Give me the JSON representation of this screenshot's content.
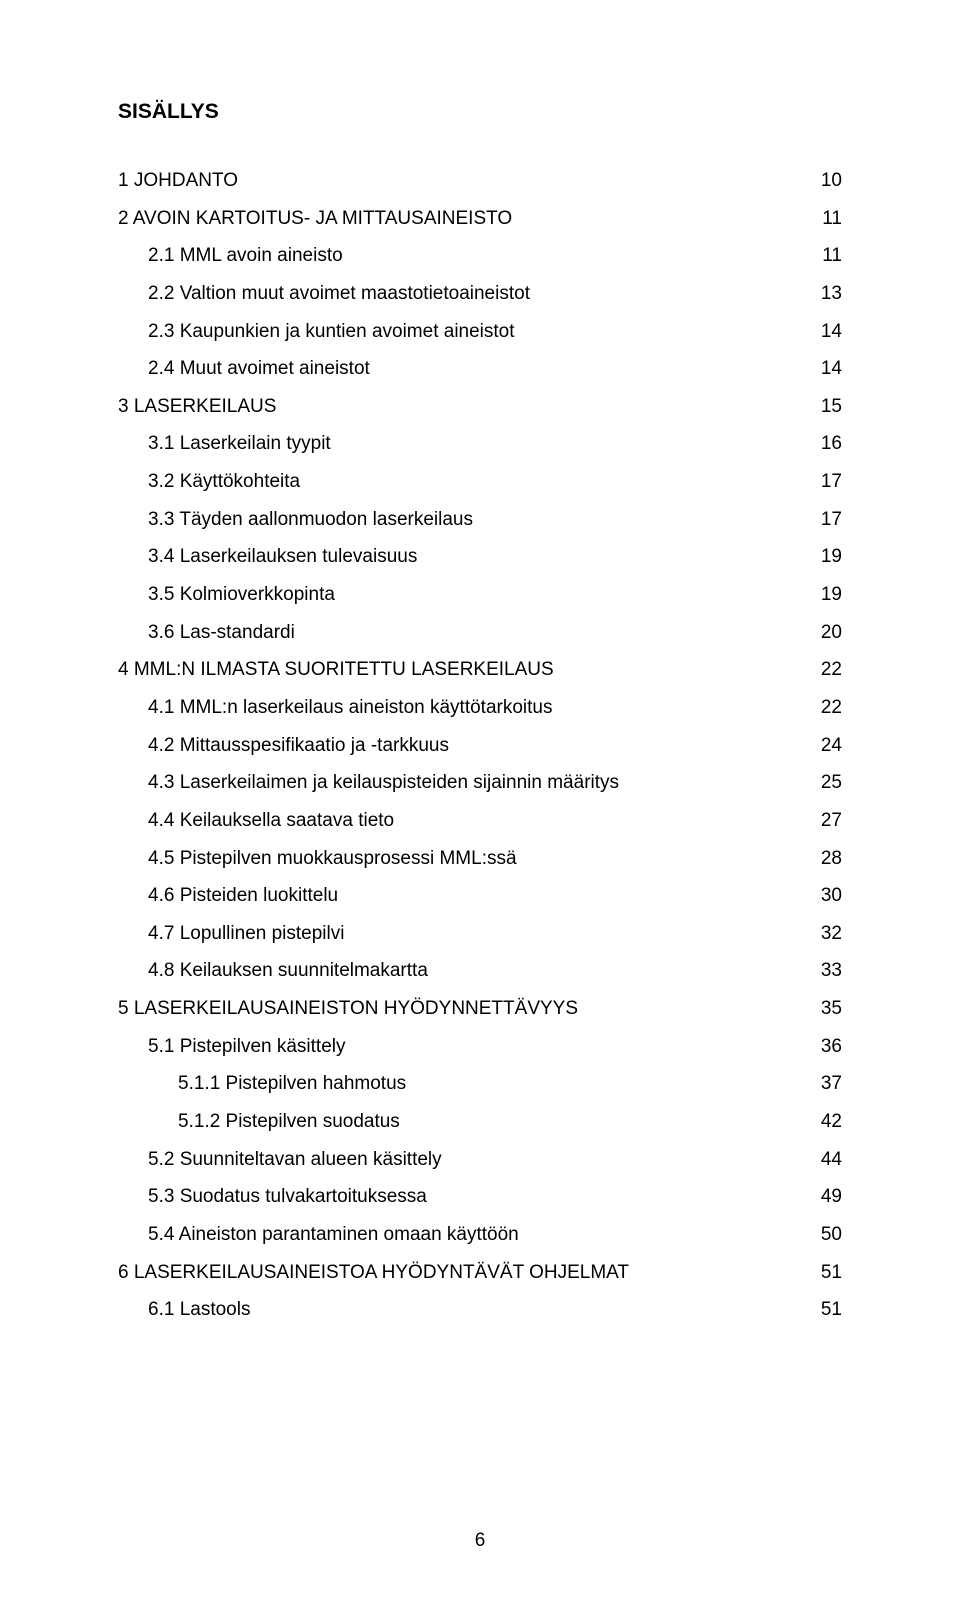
{
  "heading": "SISÄLLYS",
  "page_number": "6",
  "entries": [
    {
      "level": 0,
      "text": "1 JOHDANTO",
      "page": "10",
      "top_gap": true
    },
    {
      "level": 0,
      "text": "2 AVOIN KARTOITUS- JA MITTAUSAINEISTO",
      "page": "11"
    },
    {
      "level": 1,
      "text": "2.1 MML avoin aineisto",
      "page": "11"
    },
    {
      "level": 1,
      "text": "2.2 Valtion muut avoimet maastotietoaineistot",
      "page": "13"
    },
    {
      "level": 1,
      "text": "2.3 Kaupunkien ja kuntien avoimet aineistot",
      "page": "14"
    },
    {
      "level": 1,
      "text": "2.4 Muut avoimet aineistot",
      "page": "14"
    },
    {
      "level": 0,
      "text": "3 LASERKEILAUS",
      "page": "15"
    },
    {
      "level": 1,
      "text": "3.1 Laserkeilain tyypit",
      "page": "16"
    },
    {
      "level": 1,
      "text": "3.2 Käyttökohteita",
      "page": "17"
    },
    {
      "level": 1,
      "text": "3.3 Täyden aallonmuodon laserkeilaus",
      "page": "17"
    },
    {
      "level": 1,
      "text": "3.4 Laserkeilauksen tulevaisuus",
      "page": "19"
    },
    {
      "level": 1,
      "text": "3.5 Kolmioverkkopinta",
      "page": "19"
    },
    {
      "level": 1,
      "text": "3.6 Las-standardi",
      "page": "20"
    },
    {
      "level": 0,
      "text": "4 MML:N ILMASTA SUORITETTU LASERKEILAUS",
      "page": "22"
    },
    {
      "level": 1,
      "text": "4.1 MML:n laserkeilaus aineiston käyttötarkoitus",
      "page": "22"
    },
    {
      "level": 1,
      "text": "4.2 Mittausspesifikaatio ja -tarkkuus",
      "page": "24"
    },
    {
      "level": 1,
      "text": "4.3 Laserkeilaimen ja keilauspisteiden sijainnin määritys",
      "page": "25"
    },
    {
      "level": 1,
      "text": "4.4 Keilauksella saatava tieto",
      "page": "27"
    },
    {
      "level": 1,
      "text": "4.5 Pistepilven muokkausprosessi MML:ssä",
      "page": "28"
    },
    {
      "level": 1,
      "text": "4.6 Pisteiden luokittelu",
      "page": "30"
    },
    {
      "level": 1,
      "text": "4.7 Lopullinen pistepilvi",
      "page": "32"
    },
    {
      "level": 1,
      "text": "4.8 Keilauksen suunnitelmakartta",
      "page": "33"
    },
    {
      "level": 0,
      "text": "5 LASERKEILAUSAINEISTON HYÖDYNNETTÄVYYS",
      "page": "35"
    },
    {
      "level": 1,
      "text": "5.1 Pistepilven käsittely",
      "page": "36"
    },
    {
      "level": 2,
      "text": "5.1.1 Pistepilven hahmotus",
      "page": "37"
    },
    {
      "level": 2,
      "text": "5.1.2 Pistepilven suodatus",
      "page": "42"
    },
    {
      "level": 1,
      "text": "5.2 Suunniteltavan alueen käsittely",
      "page": "44"
    },
    {
      "level": 1,
      "text": "5.3 Suodatus tulvakartoituksessa",
      "page": "49"
    },
    {
      "level": 1,
      "text": "5.4 Aineiston parantaminen omaan käyttöön",
      "page": "50"
    },
    {
      "level": 0,
      "text": "6 LASERKEILAUSAINEISTOA HYÖDYNTÄVÄT OHJELMAT",
      "page": "51"
    },
    {
      "level": 1,
      "text": "6.1 Lastools",
      "page": "51"
    }
  ]
}
